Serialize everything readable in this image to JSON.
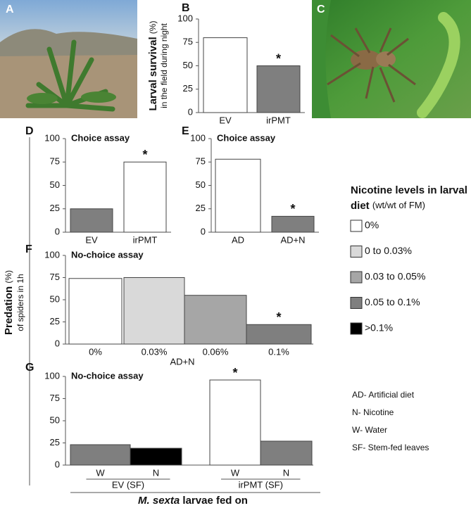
{
  "photos": [
    {
      "panel": "A"
    },
    {
      "panel": "C"
    }
  ],
  "shared_ylabel": {
    "text": "Predation",
    "unit": "(%)",
    "sub": "of spiders in 1h"
  },
  "legend": {
    "title_bold_1": "Nicotine levels in larval",
    "title_bold_2": "diet",
    "title_unit": "(wt/wt of FM)",
    "items": [
      {
        "label": "0%",
        "color": "#ffffff"
      },
      {
        "label": "0 to 0.03%",
        "color": "#d9d9d9"
      },
      {
        "label": "0.03 to 0.05%",
        "color": "#a6a6a6"
      },
      {
        "label": "0.05 to 0.1%",
        "color": "#7f7f7f"
      },
      {
        "label": ">0.1%",
        "color": "#000000"
      }
    ]
  },
  "abbreviations": [
    "AD- Artificial diet",
    "N- Nicotine",
    "W- Water",
    "SF- Stem-fed leaves"
  ],
  "chart_data": [
    {
      "type": "bar",
      "panel": "B",
      "ylabel": "Larval survival",
      "ylabel_unit": "(%)",
      "ylabel_sub": "in the field during night",
      "categories": [
        "EV",
        "irPMT"
      ],
      "values": [
        80,
        50
      ],
      "colors": [
        "#ffffff",
        "#7f7f7f"
      ],
      "significance": [
        null,
        "*"
      ],
      "ylim": [
        0,
        100
      ],
      "yticks": [
        0,
        25,
        50,
        75,
        100
      ]
    },
    {
      "type": "bar",
      "panel": "D",
      "title": "Choice assay",
      "categories": [
        "EV",
        "irPMT"
      ],
      "values": [
        25,
        75
      ],
      "colors": [
        "#7f7f7f",
        "#ffffff"
      ],
      "significance": [
        null,
        "*"
      ],
      "ylim": [
        0,
        100
      ],
      "yticks": [
        0,
        25,
        50,
        75,
        100
      ]
    },
    {
      "type": "bar",
      "panel": "E",
      "title": "Choice assay",
      "categories": [
        "AD",
        "AD+N"
      ],
      "values": [
        78,
        17
      ],
      "colors": [
        "#ffffff",
        "#7f7f7f"
      ],
      "significance": [
        null,
        "*"
      ],
      "ylim": [
        0,
        100
      ],
      "yticks": [
        0,
        25,
        50,
        75,
        100
      ]
    },
    {
      "type": "bar",
      "panel": "F",
      "title": "No-choice assay",
      "xlabel": "AD+N",
      "categories": [
        "0%",
        "0.03%",
        "0.06%",
        "0.1%"
      ],
      "values": [
        74,
        75,
        55,
        22
      ],
      "colors": [
        "#ffffff",
        "#d9d9d9",
        "#a6a6a6",
        "#7f7f7f"
      ],
      "significance": [
        null,
        null,
        null,
        "*"
      ],
      "ylim": [
        0,
        100
      ],
      "yticks": [
        0,
        25,
        50,
        75,
        100
      ]
    },
    {
      "type": "bar",
      "panel": "G",
      "title": "No-choice assay",
      "xlabel_italic": "M. sexta",
      "xlabel": "larvae fed on",
      "groups": [
        "EV (SF)",
        "irPMT (SF)"
      ],
      "categories": [
        "W",
        "N",
        "W",
        "N"
      ],
      "values": [
        23,
        19,
        96,
        27
      ],
      "colors": [
        "#7f7f7f",
        "#000000",
        "#ffffff",
        "#7f7f7f"
      ],
      "significance": [
        null,
        null,
        "*",
        null
      ],
      "ylim": [
        0,
        100
      ],
      "yticks": [
        0,
        25,
        50,
        75,
        100
      ]
    }
  ]
}
